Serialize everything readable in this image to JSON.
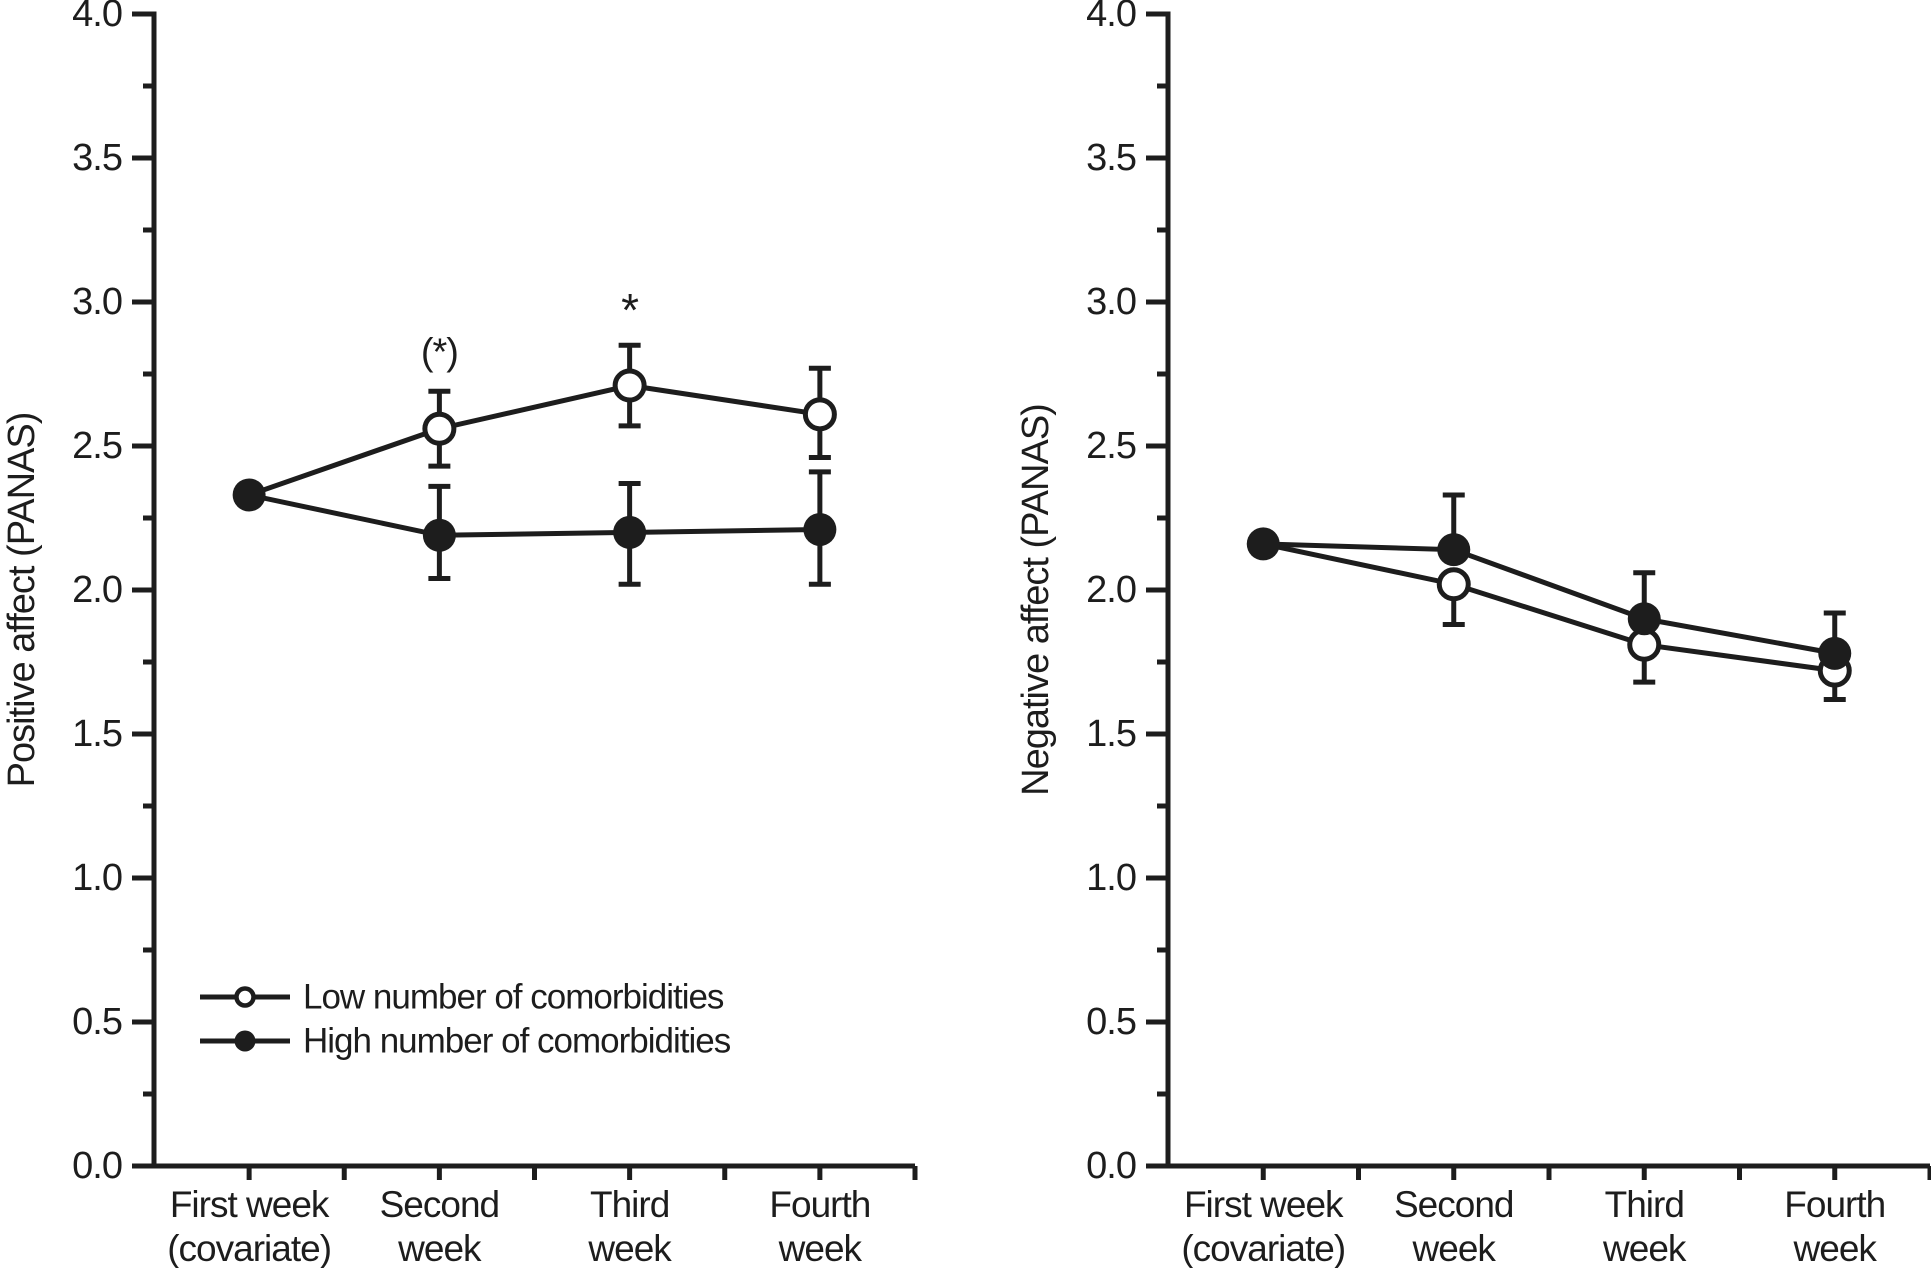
{
  "figure": {
    "background": "#ffffff",
    "ink": "#1d1d1d"
  },
  "axes": {
    "y_min": 0.0,
    "y_max": 4.0,
    "y_major_step": 0.5,
    "y_minor_step": 0.25,
    "y_tick_labels": [
      "0.0",
      "0.5",
      "1.0",
      "1.5",
      "2.0",
      "2.5",
      "3.0",
      "3.5",
      "4.0"
    ]
  },
  "categories": [
    {
      "line1": "First week",
      "line2": "(covariate)"
    },
    {
      "line1": "Second",
      "line2": "week"
    },
    {
      "line1": "Third",
      "line2": "week"
    },
    {
      "line1": "Fourth",
      "line2": "week"
    }
  ],
  "legend": {
    "items": [
      {
        "label": "Low number of comorbidities",
        "marker": "open"
      },
      {
        "label": "High number of comorbidities",
        "marker": "filled"
      }
    ]
  },
  "chart_data": [
    {
      "type": "line",
      "panel": "left",
      "ylabel": "Positive affect (PANAS)",
      "ylim": [
        0.0,
        4.0
      ],
      "categories": [
        "First week (covariate)",
        "Second week",
        "Third week",
        "Fourth week"
      ],
      "series": [
        {
          "name": "Low number of comorbidities",
          "marker": "open",
          "values": [
            2.33,
            2.56,
            2.71,
            2.61
          ],
          "err_down": [
            null,
            0.13,
            0.14,
            0.15
          ],
          "err_up": [
            null,
            0.13,
            0.14,
            0.16
          ],
          "point_shown": [
            false,
            true,
            true,
            true
          ]
        },
        {
          "name": "High number of comorbidities",
          "marker": "filled",
          "values": [
            2.33,
            2.19,
            2.2,
            2.21
          ],
          "err_down": [
            null,
            0.15,
            0.18,
            0.19
          ],
          "err_up": [
            null,
            0.17,
            0.17,
            0.2
          ],
          "point_shown": [
            true,
            true,
            true,
            true
          ]
        }
      ],
      "annotations": [
        {
          "text": "(*)",
          "category_index": 1,
          "y_value": 2.83
        },
        {
          "text": "*",
          "category_index": 2,
          "y_value": 3.02
        }
      ],
      "show_legend": true
    },
    {
      "type": "line",
      "panel": "right",
      "ylabel": "Negative affect (PANAS)",
      "ylim": [
        0.0,
        4.0
      ],
      "categories": [
        "First week (covariate)",
        "Second week",
        "Third week",
        "Fourth week"
      ],
      "series": [
        {
          "name": "Low number of comorbidities",
          "marker": "open",
          "values": [
            2.16,
            2.02,
            1.81,
            1.72
          ],
          "err_down": [
            null,
            0.14,
            0.13,
            0.1
          ],
          "err_up": [
            null,
            0,
            0,
            0
          ],
          "point_shown": [
            false,
            true,
            true,
            true
          ]
        },
        {
          "name": "High number of comorbidities",
          "marker": "filled",
          "values": [
            2.16,
            2.14,
            1.9,
            1.78
          ],
          "err_down": [
            null,
            0,
            0,
            0
          ],
          "err_up": [
            null,
            0.19,
            0.16,
            0.14
          ],
          "point_shown": [
            true,
            true,
            true,
            true
          ]
        }
      ],
      "annotations": [],
      "show_legend": false
    }
  ]
}
